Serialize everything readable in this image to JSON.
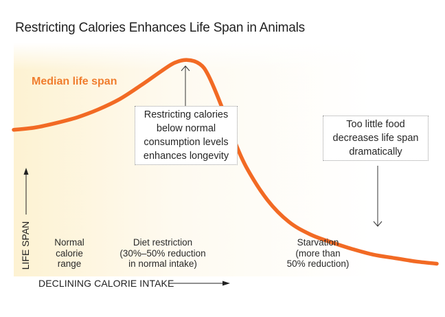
{
  "chart_data": {
    "type": "line",
    "title": "Restricting Calories Enhances Life Span in Animals",
    "xlabel": "DECLINING CALORIE INTAKE",
    "ylabel": "LIFE SPAN",
    "xlim": [
      0,
      100
    ],
    "ylim": [
      0,
      100
    ],
    "grid": false,
    "legend": "none",
    "series": [
      {
        "name": "Median life span",
        "color": "#f26a24",
        "x": [
          0,
          5,
          10,
          15,
          20,
          25,
          30,
          35,
          38,
          41,
          44,
          46,
          49,
          52,
          55,
          60,
          65,
          70,
          75,
          80,
          85,
          90,
          95,
          100
        ],
        "y": [
          64,
          65,
          67,
          69.5,
          73,
          77.5,
          83.5,
          90,
          93.5,
          94.8,
          93,
          88,
          75,
          60,
          47.5,
          33,
          23.5,
          18,
          14.5,
          11.5,
          9,
          7.5,
          6,
          5
        ]
      }
    ],
    "regions": [
      {
        "label": "Normal\ncalorie\nrange"
      },
      {
        "label": "Diet restriction\n(30%–50% reduction\nin normal intake)"
      },
      {
        "label": "Starvation\n(more than\n50% reduction)"
      }
    ],
    "annotations": [
      {
        "text": "Restricting calories\nbelow normal\nconsumption levels\nenhances longevity",
        "x": 41,
        "y": 94.8
      },
      {
        "text": "Too little food\ndecreases life span\ndramatically",
        "x": 86,
        "y": 8.6
      }
    ]
  }
}
